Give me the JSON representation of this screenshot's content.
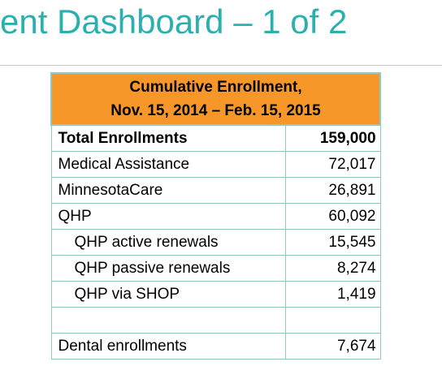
{
  "slide": {
    "title": "ent Dashboard – 1 of 2"
  },
  "table": {
    "header_line1": "Cumulative Enrollment,",
    "header_line2": "Nov. 15, 2014 – Feb. 15, 2015",
    "rows": [
      {
        "label": "Total Enrollments",
        "value": "159,000"
      },
      {
        "label": "Medical Assistance",
        "value": "72,017"
      },
      {
        "label": "MinnesotaCare",
        "value": "26,891"
      },
      {
        "label": "QHP",
        "value": "60,092"
      },
      {
        "label": "QHP active renewals",
        "value": "15,545"
      },
      {
        "label": "QHP passive renewals",
        "value": "8,274"
      },
      {
        "label": "QHP via SHOP",
        "value": "1,419"
      },
      {
        "label": "",
        "value": ""
      },
      {
        "label": "Dental enrollments",
        "value": "7,674"
      }
    ]
  },
  "colors": {
    "title": "#2bb0b0",
    "header_fill": "#f7972a",
    "border": "#8ec8c8"
  }
}
